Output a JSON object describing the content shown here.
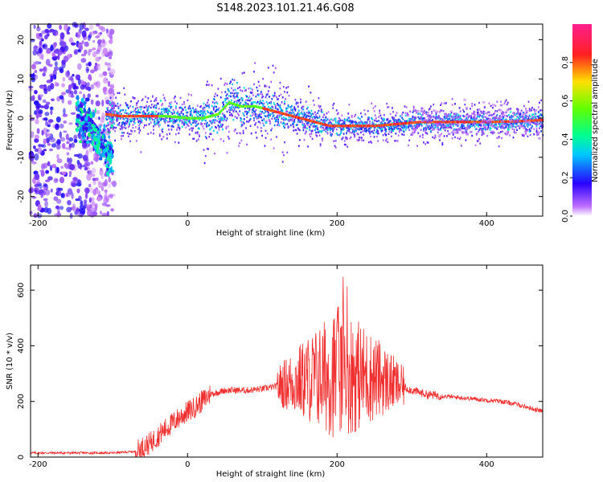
{
  "title": "S148.2023.101.21.46.G08",
  "colors": {
    "snr_line": "#f03030",
    "axis": "#000000",
    "background": "#ffffff"
  },
  "chart_data": [
    {
      "type": "heatmap",
      "xlabel": "Height of straight line (km)",
      "ylabel": "Frequency (Hz)",
      "xlim": [
        -210,
        475
      ],
      "ylim": [
        -25,
        24
      ],
      "x_ticks": [
        -200,
        0,
        200,
        400
      ],
      "y_ticks": [
        -20,
        -10,
        0,
        10,
        20
      ],
      "colorbar": {
        "label": "Normalized spectral amplitude",
        "range": [
          0.0,
          1.0
        ],
        "ticks": [
          "0.0",
          "0.2",
          "0.4",
          "0.6",
          "0.8"
        ],
        "colormap": "white-violet-blue-cyan-green-yellow-red-magenta"
      },
      "ridge": {
        "x": [
          -110,
          -90,
          -60,
          -30,
          0,
          20,
          40,
          55,
          70,
          90,
          110,
          130,
          150,
          170,
          190,
          220,
          250,
          280,
          310,
          350,
          400,
          440,
          475
        ],
        "frequency_hz": [
          1,
          0.5,
          0.5,
          0.5,
          0,
          0,
          1,
          4,
          3,
          3,
          2,
          1,
          0,
          -1,
          -2,
          -2,
          -2,
          -1.5,
          -1,
          -1,
          -1,
          -0.8,
          -0.5
        ]
      }
    },
    {
      "type": "line",
      "xlabel": "Height of straight line (km)",
      "ylabel": "SNR (10 * v/v)",
      "xlim": [
        -210,
        475
      ],
      "ylim": [
        0,
        690
      ],
      "x_ticks": [
        -200,
        0,
        200,
        400
      ],
      "y_ticks": [
        0,
        200,
        400,
        600
      ],
      "series": [
        {
          "x": [
            -210,
            -150,
            -100,
            -70,
            -50,
            -30,
            -10,
            10,
            30,
            50,
            80,
            100,
            120,
            140,
            160,
            180,
            200,
            210,
            220,
            240,
            260,
            280,
            300,
            320,
            340,
            360,
            380,
            400,
            420,
            440,
            460,
            475
          ],
          "values": [
            15,
            15,
            15,
            20,
            50,
            100,
            145,
            180,
            225,
            240,
            240,
            245,
            255,
            270,
            280,
            290,
            300,
            310,
            300,
            290,
            280,
            260,
            240,
            225,
            220,
            215,
            210,
            205,
            200,
            190,
            175,
            165
          ]
        }
      ]
    }
  ]
}
